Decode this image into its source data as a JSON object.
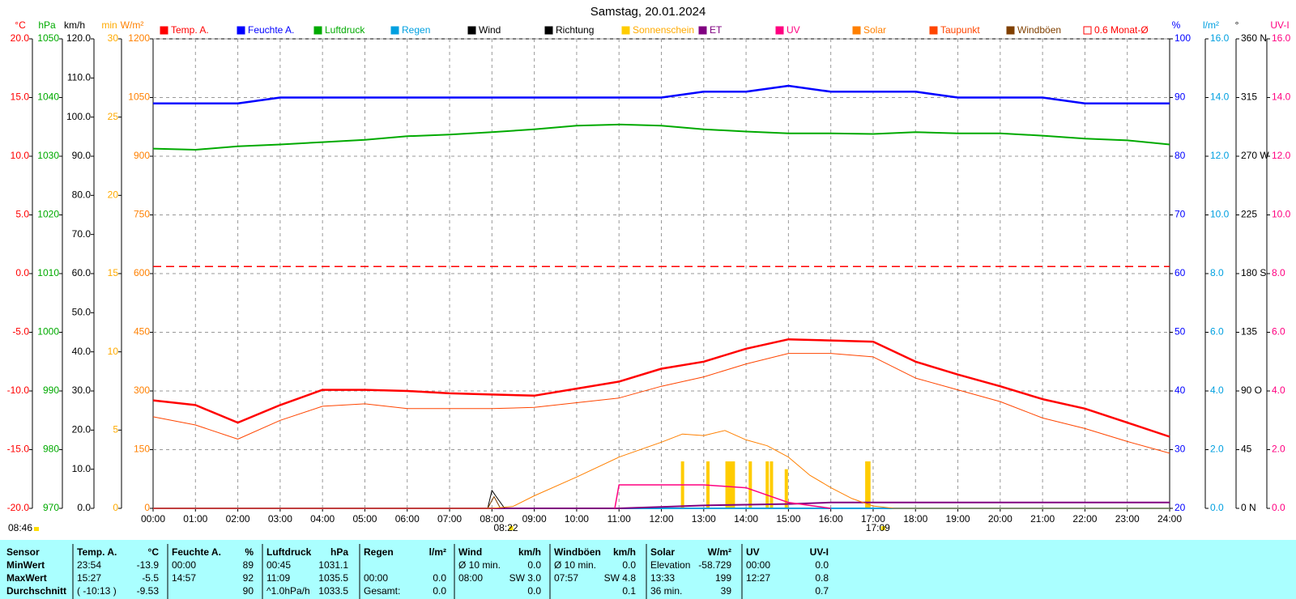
{
  "chart_data": {
    "type": "line",
    "title": "Samstag, 20.01.2024",
    "x": [
      0,
      1,
      2,
      3,
      4,
      5,
      6,
      7,
      8,
      9,
      10,
      11,
      12,
      13,
      14,
      15,
      16,
      17,
      18,
      19,
      20,
      21,
      22,
      23,
      24
    ],
    "xlim": [
      0,
      24
    ],
    "xticks": [
      {
        "value": 0,
        "label": "00:00"
      },
      {
        "value": 1,
        "label": "01:00"
      },
      {
        "value": 2,
        "label": "02:00"
      },
      {
        "value": 3,
        "label": "03:00"
      },
      {
        "value": 4,
        "label": "04:00"
      },
      {
        "value": 5,
        "label": "05:00"
      },
      {
        "value": 6,
        "label": "06:00"
      },
      {
        "value": 7,
        "label": "07:00"
      },
      {
        "value": 8,
        "label": "08:00"
      },
      {
        "value": 9,
        "label": "09:00"
      },
      {
        "value": 10,
        "label": "10:00"
      },
      {
        "value": 11,
        "label": "11:00"
      },
      {
        "value": 12,
        "label": "12:00"
      },
      {
        "value": 13,
        "label": "13:00"
      },
      {
        "value": 14,
        "label": "14:00"
      },
      {
        "value": 15,
        "label": "15:00"
      },
      {
        "value": 16,
        "label": "16:00"
      },
      {
        "value": 17,
        "label": "17:00"
      },
      {
        "value": 18,
        "label": "18:00"
      },
      {
        "value": 19,
        "label": "19:00"
      },
      {
        "value": 20,
        "label": "20:00"
      },
      {
        "value": 21,
        "label": "21:00"
      },
      {
        "value": 22,
        "label": "22:00"
      },
      {
        "value": 23,
        "label": "23:00"
      },
      {
        "value": 24,
        "label": "24:00"
      }
    ],
    "grid": true,
    "axes": [
      {
        "unit": "°C",
        "color": "#ff0000",
        "side": "left",
        "ylim": [
          -20,
          20
        ],
        "yticks": [
          {
            "value": -20,
            "label": "-20.0"
          },
          {
            "value": -15,
            "label": "-15.0"
          },
          {
            "value": -10,
            "label": "-10.0"
          },
          {
            "value": -5,
            "label": "-5.0"
          },
          {
            "value": 0,
            "label": "0.0"
          },
          {
            "value": 5,
            "label": "5.0"
          },
          {
            "value": 10,
            "label": "10.0"
          },
          {
            "value": 15,
            "label": "15.0"
          },
          {
            "value": 20,
            "label": "20.0"
          }
        ]
      },
      {
        "unit": "hPa",
        "color": "#00aa00",
        "side": "left",
        "ylim": [
          970,
          1050
        ],
        "yticks": [
          970,
          980,
          990,
          1000,
          1010,
          1020,
          1030,
          1040,
          1050
        ]
      },
      {
        "unit": "km/h",
        "color": "#000000",
        "side": "left",
        "ylim": [
          0,
          120
        ],
        "yticks": [
          {
            "value": 0,
            "label": "0.0"
          },
          {
            "value": 10,
            "label": "10.0"
          },
          {
            "value": 20,
            "label": "20.0"
          },
          {
            "value": 30,
            "label": "30.0"
          },
          {
            "value": 40,
            "label": "40.0"
          },
          {
            "value": 50,
            "label": "50.0"
          },
          {
            "value": 60,
            "label": "60.0"
          },
          {
            "value": 70,
            "label": "70.0"
          },
          {
            "value": 80,
            "label": "80.0"
          },
          {
            "value": 90,
            "label": "90.0"
          },
          {
            "value": 100,
            "label": "100.0"
          },
          {
            "value": 110,
            "label": "110.0"
          },
          {
            "value": 120,
            "label": "120.0"
          }
        ]
      },
      {
        "unit": "min",
        "color": "#ffaa00",
        "side": "left",
        "ylim": [
          0,
          30
        ],
        "yticks": [
          0,
          5,
          10,
          15,
          20,
          25,
          30
        ]
      },
      {
        "unit": "W/m²",
        "color": "#ff8000",
        "side": "left",
        "grid": true,
        "ylim": [
          0,
          1200
        ],
        "yticks": [
          0,
          150,
          300,
          450,
          600,
          750,
          900,
          1050,
          1200
        ]
      },
      {
        "unit": "%",
        "color": "#0000ff",
        "side": "right",
        "ylim": [
          20,
          100
        ],
        "yticks": [
          20,
          30,
          40,
          50,
          60,
          70,
          80,
          90,
          100
        ]
      },
      {
        "unit": "l/m²",
        "color": "#00a0e0",
        "side": "right",
        "ylim": [
          0,
          16
        ],
        "yticks": [
          {
            "value": 0,
            "label": "0.0"
          },
          {
            "value": 2,
            "label": "2.0"
          },
          {
            "value": 4,
            "label": "4.0"
          },
          {
            "value": 6,
            "label": "6.0"
          },
          {
            "value": 8,
            "label": "8.0"
          },
          {
            "value": 10,
            "label": "10.0"
          },
          {
            "value": 12,
            "label": "12.0"
          },
          {
            "value": 14,
            "label": "14.0"
          },
          {
            "value": 16,
            "label": "16.0"
          }
        ]
      },
      {
        "unit": "°",
        "color": "#000000",
        "side": "right",
        "ylim": [
          0,
          360
        ],
        "yticks": [
          {
            "value": 0,
            "label": "0 N"
          },
          45,
          {
            "value": 90,
            "label": "90 O"
          },
          135,
          {
            "value": 180,
            "label": "180 S"
          },
          225,
          {
            "value": 270,
            "label": "270 W"
          },
          315,
          {
            "value": 360,
            "label": "360 N"
          }
        ]
      },
      {
        "unit": "UV-I",
        "color": "#ff0080",
        "side": "right",
        "ylim": [
          0,
          16
        ],
        "yticks": [
          {
            "value": 0,
            "label": "0.0"
          },
          {
            "value": 2,
            "label": "2.0"
          },
          {
            "value": 4,
            "label": "4.0"
          },
          {
            "value": 6,
            "label": "6.0"
          },
          {
            "value": 8,
            "label": "8.0"
          },
          {
            "value": 10,
            "label": "10.0"
          },
          {
            "value": 12,
            "label": "12.0"
          },
          {
            "value": 14,
            "label": "14.0"
          },
          {
            "value": 16,
            "label": "16.0"
          }
        ]
      }
    ],
    "series": [
      {
        "name": "Temp. A.",
        "color": "#ff0000",
        "style": "line",
        "width": 2.5,
        "axis": 0,
        "values": [
          -10.8,
          -11.2,
          -12.7,
          -11.2,
          -9.9,
          -9.9,
          -10.0,
          -10.2,
          -10.3,
          -10.4,
          -9.8,
          -9.2,
          -8.1,
          -7.5,
          -6.4,
          -5.6,
          -5.7,
          -5.8,
          -7.5,
          -8.6,
          -9.6,
          -10.7,
          -11.5,
          -12.7,
          -13.9
        ]
      },
      {
        "name": "Feuchte A.",
        "color": "#0000ff",
        "style": "line",
        "width": 2.5,
        "axis": 5,
        "values": [
          89,
          89,
          89,
          90,
          90,
          90,
          90,
          90,
          90,
          90,
          90,
          90,
          90,
          91,
          91,
          92,
          91,
          91,
          91,
          90,
          90,
          90,
          89,
          89,
          89
        ]
      },
      {
        "name": "Luftdruck",
        "color": "#00aa00",
        "style": "line",
        "width": 2,
        "axis": 1,
        "values": [
          1031.3,
          1031.1,
          1031.7,
          1032.0,
          1032.4,
          1032.8,
          1033.4,
          1033.7,
          1034.1,
          1034.6,
          1035.2,
          1035.4,
          1035.2,
          1034.6,
          1034.2,
          1033.9,
          1033.9,
          1033.8,
          1034.1,
          1033.9,
          1033.9,
          1033.5,
          1033.0,
          1032.7,
          1032.0
        ]
      },
      {
        "name": "Regen",
        "color": "#00a0e0",
        "style": "line",
        "width": 2,
        "axis": 6,
        "x": [
          0,
          24
        ],
        "values": [
          0,
          0
        ]
      },
      {
        "name": "Wind",
        "color": "#000000",
        "style": "line",
        "width": 1,
        "axis": 2,
        "x": [
          7.9,
          8.0,
          8.1,
          8.3
        ],
        "values": [
          0,
          4.6,
          3,
          0
        ]
      },
      {
        "name": "Richtung",
        "color": "#000000",
        "style": "line",
        "width": 1,
        "axis": 7
      },
      {
        "name": "Sonnenschein",
        "color": "#ffcc00",
        "style": "bar",
        "axis": 3,
        "x": [
          12.5,
          13.1,
          13.55,
          13.6,
          13.65,
          13.7,
          14.1,
          14.5,
          14.6,
          14.95,
          16.85,
          16.9
        ],
        "values": [
          3,
          3,
          3,
          3,
          3,
          3,
          3,
          3,
          3,
          2.5,
          3,
          3
        ]
      },
      {
        "name": "ET",
        "color": "#800080",
        "style": "line",
        "width": 2,
        "axis": 6,
        "x": [
          0,
          11,
          12,
          13,
          15,
          16,
          24
        ],
        "values": [
          0,
          0,
          0.05,
          0.1,
          0.15,
          0.2,
          0.2
        ]
      },
      {
        "name": "UV",
        "color": "#ff0080",
        "style": "line",
        "width": 1.5,
        "axis": 8,
        "x": [
          10.9,
          11,
          13,
          14,
          15,
          15.5,
          16
        ],
        "values": [
          0,
          0.8,
          0.8,
          0.7,
          0.2,
          0.1,
          0
        ]
      },
      {
        "name": "Solar",
        "color": "#ff8000",
        "style": "line",
        "width": 1,
        "axis": 4,
        "x": [
          0,
          8,
          8.5,
          9,
          10,
          11,
          12,
          12.5,
          13,
          13.5,
          14,
          14.5,
          15,
          15.5,
          16,
          16.5,
          17,
          17.5,
          24
        ],
        "values": [
          0,
          0,
          5,
          32,
          80,
          131,
          169,
          190,
          186,
          199,
          175,
          160,
          131,
          85,
          53,
          25,
          6,
          0,
          0
        ]
      },
      {
        "name": "Taupunkt",
        "color": "#ff4500",
        "style": "line",
        "width": 1,
        "axis": 0,
        "values": [
          -12.2,
          -12.9,
          -14.1,
          -12.5,
          -11.3,
          -11.1,
          -11.5,
          -11.5,
          -11.5,
          -11.4,
          -11.0,
          -10.6,
          -9.6,
          -8.8,
          -7.7,
          -6.8,
          -6.8,
          -7.1,
          -8.9,
          -9.9,
          -10.9,
          -12.3,
          -13.2,
          -14.3,
          -15.3
        ]
      },
      {
        "name": "Windböen",
        "color": "#804000",
        "style": "line",
        "width": 1,
        "axis": 2,
        "x": [
          7.9,
          8.05,
          8.2
        ],
        "values": [
          0,
          3,
          0
        ]
      },
      {
        "name": "0.6 Monat-Ø",
        "color": "#ff0000",
        "style": "hline",
        "width": 1.5,
        "axis": 0,
        "value": 0.6
      }
    ],
    "sun": {
      "rise": {
        "value": 8.367,
        "label": "08:22"
      },
      "set": {
        "value": 17.15,
        "label": "17:09"
      }
    },
    "updated": "08:46"
  },
  "table": {
    "header": [
      "Sensor",
      [
        "Temp. A.",
        "°C"
      ],
      [
        "Feuchte A.",
        "%"
      ],
      [
        "Luftdruck",
        "hPa"
      ],
      [
        "Regen",
        "l/m²"
      ],
      [
        "Wind",
        "km/h"
      ],
      [
        "Windböen",
        "km/h"
      ],
      [
        "Solar",
        "W/m²"
      ],
      [
        "UV",
        "UV-I"
      ]
    ],
    "rows": [
      [
        "MinWert",
        [
          "23:54",
          "-13.9"
        ],
        [
          "00:00",
          "89"
        ],
        [
          "00:45",
          "1031.1"
        ],
        [
          null,
          null
        ],
        [
          "Ø 10 min.",
          "0.0"
        ],
        [
          "Ø 10 min.",
          "0.0"
        ],
        [
          "Elevation",
          "-58.729"
        ],
        [
          "00:00",
          "0.0"
        ]
      ],
      [
        "MaxWert",
        [
          "15:27",
          "-5.5"
        ],
        [
          "14:57",
          "92"
        ],
        [
          "11:09",
          "1035.5"
        ],
        [
          "00:00",
          "0.0"
        ],
        [
          "08:00",
          "SW 3.0"
        ],
        [
          "07:57",
          "SW 4.8"
        ],
        [
          "13:33",
          "199"
        ],
        [
          "12:27",
          "0.8"
        ]
      ],
      [
        "Durchschnitt",
        [
          "( -10:13 )",
          "-9.53"
        ],
        [
          null,
          "90"
        ],
        [
          "^1.0hPa/h",
          "1033.5"
        ],
        [
          "Gesamt:",
          "0.0"
        ],
        [
          null,
          "0.0"
        ],
        [
          null,
          "0.1"
        ],
        [
          "36 min.",
          "39"
        ],
        [
          null,
          "0.7"
        ]
      ]
    ]
  }
}
